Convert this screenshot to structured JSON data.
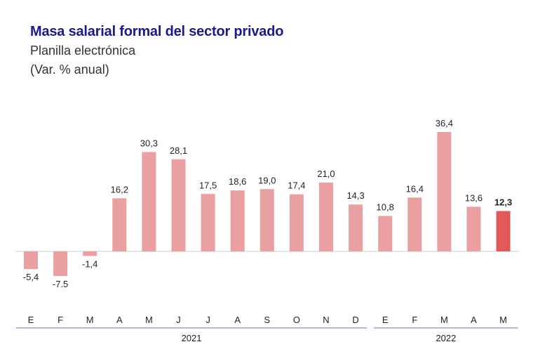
{
  "chart_data": {
    "type": "bar",
    "title": "Masa salarial formal del sector privado",
    "subtitle": "Planilla electrónica",
    "unit_label": "(Var. % anual)",
    "categories": [
      "E",
      "F",
      "M",
      "A",
      "M",
      "J",
      "J",
      "A",
      "S",
      "O",
      "N",
      "D",
      "E",
      "F",
      "M",
      "A",
      "M"
    ],
    "year_groups": [
      {
        "label": "2021",
        "count": 12
      },
      {
        "label": "2022",
        "count": 5
      }
    ],
    "values": [
      -5.4,
      -7.5,
      -1.4,
      16.2,
      30.3,
      28.1,
      17.5,
      18.6,
      19.0,
      17.4,
      21.0,
      14.3,
      10.8,
      16.4,
      36.4,
      13.6,
      12.3
    ],
    "value_labels": [
      "-5,4",
      "-7.5",
      "-1,4",
      "16,2",
      "30,3",
      "28,1",
      "17,5",
      "18,6",
      "19,0",
      "17,4",
      "21,0",
      "14,3",
      "10,8",
      "16,4",
      "36,4",
      "13,6",
      "12,3"
    ],
    "highlight_index": 16,
    "colors": {
      "bar": "#eaa0a0",
      "highlight": "#e05858",
      "axis_line": "#8a86c8",
      "zero_line": "#cccccc"
    },
    "grid": false,
    "legend": "none"
  }
}
